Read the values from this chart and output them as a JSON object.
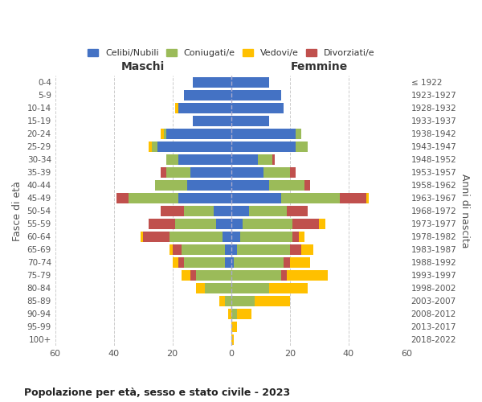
{
  "age_groups": [
    "0-4",
    "5-9",
    "10-14",
    "15-19",
    "20-24",
    "25-29",
    "30-34",
    "35-39",
    "40-44",
    "45-49",
    "50-54",
    "55-59",
    "60-64",
    "65-69",
    "70-74",
    "75-79",
    "80-84",
    "85-89",
    "90-94",
    "95-99",
    "100+"
  ],
  "birth_years": [
    "2018-2022",
    "2013-2017",
    "2008-2012",
    "2003-2007",
    "1998-2002",
    "1993-1997",
    "1988-1992",
    "1983-1987",
    "1978-1982",
    "1973-1977",
    "1968-1972",
    "1963-1967",
    "1958-1962",
    "1953-1957",
    "1948-1952",
    "1943-1947",
    "1938-1942",
    "1933-1937",
    "1928-1932",
    "1923-1927",
    "≤ 1922"
  ],
  "maschi": {
    "celibi": [
      13,
      16,
      18,
      13,
      22,
      25,
      18,
      14,
      15,
      18,
      6,
      5,
      3,
      2,
      2,
      0,
      0,
      0,
      0,
      0,
      0
    ],
    "coniugati": [
      0,
      0,
      0,
      0,
      1,
      2,
      4,
      8,
      11,
      17,
      10,
      14,
      18,
      15,
      14,
      12,
      9,
      2,
      0,
      0,
      0
    ],
    "vedovi": [
      0,
      0,
      1,
      0,
      1,
      1,
      0,
      0,
      0,
      0,
      0,
      0,
      1,
      1,
      2,
      3,
      3,
      2,
      1,
      0,
      0
    ],
    "divorziati": [
      0,
      0,
      0,
      0,
      0,
      0,
      0,
      2,
      0,
      4,
      8,
      9,
      9,
      3,
      2,
      2,
      0,
      0,
      0,
      0,
      0
    ]
  },
  "femmine": {
    "nubili": [
      13,
      17,
      18,
      13,
      22,
      22,
      9,
      11,
      13,
      17,
      6,
      4,
      3,
      2,
      1,
      0,
      0,
      0,
      0,
      0,
      0
    ],
    "coniugate": [
      0,
      0,
      0,
      0,
      2,
      4,
      5,
      9,
      12,
      20,
      13,
      17,
      18,
      18,
      17,
      17,
      13,
      8,
      2,
      0,
      0
    ],
    "vedove": [
      0,
      0,
      0,
      0,
      0,
      0,
      0,
      0,
      0,
      1,
      0,
      2,
      2,
      4,
      7,
      14,
      13,
      12,
      5,
      2,
      1
    ],
    "divorziate": [
      0,
      0,
      0,
      0,
      0,
      0,
      1,
      2,
      2,
      9,
      7,
      9,
      2,
      4,
      2,
      2,
      0,
      0,
      0,
      0,
      0
    ]
  },
  "colors": {
    "celibi": "#4472C4",
    "coniugati": "#9BBB59",
    "vedovi": "#FFC000",
    "divorziati": "#C0504D"
  },
  "xlim": 60,
  "title": "Popolazione per età, sesso e stato civile - 2023",
  "ylabel_left": "Fasce di età",
  "ylabel_right": "Anni di nascita",
  "xlabel_left": "Maschi",
  "xlabel_right": "Femmine",
  "background_color": "#ffffff",
  "grid_color": "#cccccc"
}
